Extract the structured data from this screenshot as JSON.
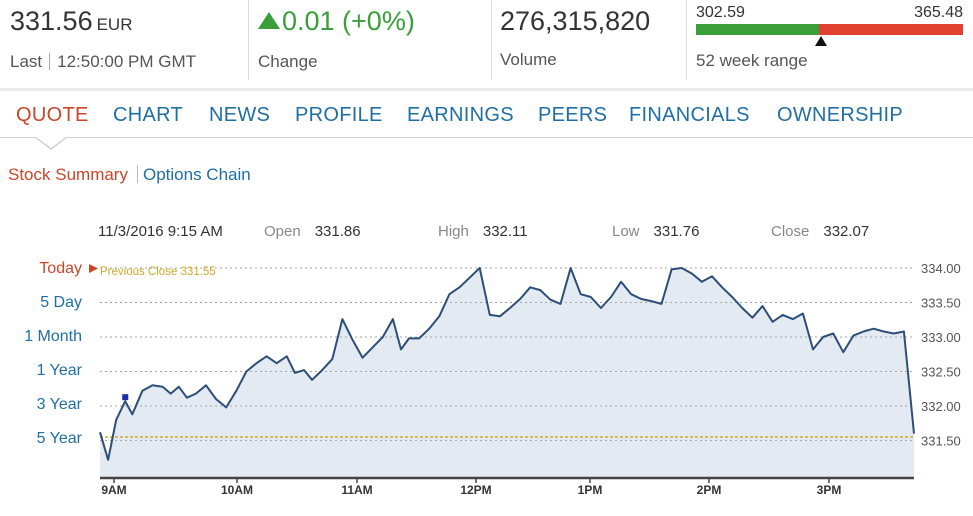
{
  "header": {
    "price": "331.56",
    "currency": "EUR",
    "last_label": "Last",
    "last_time": "12:50:00 PM GMT",
    "change": "0.01 (+0%)",
    "change_label": "Change",
    "volume": "276,315,820",
    "volume_label": "Volume",
    "range_low": "302.59",
    "range_high": "365.48",
    "range_label": "52 week range",
    "colors": {
      "up": "#3a9e3a",
      "down": "#e04030"
    }
  },
  "tabs": [
    {
      "label": "QUOTE",
      "active": true
    },
    {
      "label": "CHART"
    },
    {
      "label": "NEWS"
    },
    {
      "label": "PROFILE"
    },
    {
      "label": "EARNINGS"
    },
    {
      "label": "PEERS"
    },
    {
      "label": "FINANCIALS"
    },
    {
      "label": "OWNERSHIP"
    }
  ],
  "subtabs": [
    {
      "label": "Stock Summary",
      "active": true
    },
    {
      "label": "Options Chain"
    }
  ],
  "ohlc": {
    "datetime": "11/3/2016 9:15 AM",
    "open_label": "Open",
    "open": "331.86",
    "high_label": "High",
    "high": "332.11",
    "low_label": "Low",
    "low": "331.76",
    "close_label": "Close",
    "close": "332.07"
  },
  "periods": [
    {
      "label": "Today",
      "active": true
    },
    {
      "label": "5 Day"
    },
    {
      "label": "1 Month"
    },
    {
      "label": "1 Year"
    },
    {
      "label": "3 Year"
    },
    {
      "label": "5 Year"
    }
  ],
  "chart_data": {
    "type": "area",
    "previous_close_label": "Previous Close 331.55",
    "previous_close": 331.55,
    "ylim": [
      331.0,
      334.0
    ],
    "y_ticks": [
      "334.00",
      "333.50",
      "333.00",
      "332.50",
      "332.00",
      "331.50"
    ],
    "x_ticks": [
      "9AM",
      "10AM",
      "11AM",
      "12PM",
      "1PM",
      "2PM",
      "3PM"
    ],
    "x_domain_hours": [
      9.0,
      15.75
    ],
    "x_tick_hours": [
      9,
      10,
      11,
      12,
      13,
      14,
      15
    ],
    "selected_point": {
      "hour": 9.25,
      "value": 332.07
    },
    "colors": {
      "line": "#2d4e78",
      "fill": "#e3eaf1",
      "prev_close": "#d4a82a"
    },
    "series": [
      {
        "values": [
          [
            9.0,
            331.62
          ],
          [
            9.08,
            331.22
          ],
          [
            9.16,
            331.8
          ],
          [
            9.25,
            332.07
          ],
          [
            9.32,
            331.88
          ],
          [
            9.42,
            332.22
          ],
          [
            9.52,
            332.3
          ],
          [
            9.62,
            332.28
          ],
          [
            9.7,
            332.18
          ],
          [
            9.78,
            332.28
          ],
          [
            9.86,
            332.12
          ],
          [
            9.95,
            332.18
          ],
          [
            10.05,
            332.3
          ],
          [
            10.15,
            332.1
          ],
          [
            10.25,
            331.98
          ],
          [
            10.35,
            332.22
          ],
          [
            10.45,
            332.5
          ],
          [
            10.55,
            332.62
          ],
          [
            10.65,
            332.72
          ],
          [
            10.75,
            332.62
          ],
          [
            10.85,
            332.72
          ],
          [
            10.93,
            332.48
          ],
          [
            11.02,
            332.52
          ],
          [
            11.1,
            332.38
          ],
          [
            11.2,
            332.52
          ],
          [
            11.3,
            332.68
          ],
          [
            11.4,
            333.26
          ],
          [
            11.5,
            332.96
          ],
          [
            11.6,
            332.7
          ],
          [
            11.7,
            332.85
          ],
          [
            11.8,
            333.0
          ],
          [
            11.9,
            333.26
          ],
          [
            11.98,
            332.82
          ],
          [
            12.06,
            332.98
          ],
          [
            12.16,
            332.98
          ],
          [
            12.26,
            333.12
          ],
          [
            12.36,
            333.3
          ],
          [
            12.46,
            333.62
          ],
          [
            12.56,
            333.72
          ],
          [
            12.66,
            333.86
          ],
          [
            12.76,
            334.0
          ],
          [
            12.86,
            333.32
          ],
          [
            12.96,
            333.3
          ],
          [
            13.06,
            333.42
          ],
          [
            13.16,
            333.55
          ],
          [
            13.26,
            333.72
          ],
          [
            13.36,
            333.68
          ],
          [
            13.46,
            333.54
          ],
          [
            13.56,
            333.48
          ],
          [
            13.66,
            334.0
          ],
          [
            13.76,
            333.62
          ],
          [
            13.86,
            333.58
          ],
          [
            13.96,
            333.42
          ],
          [
            14.06,
            333.58
          ],
          [
            14.16,
            333.8
          ],
          [
            14.26,
            333.62
          ],
          [
            14.36,
            333.55
          ],
          [
            14.46,
            333.52
          ],
          [
            14.56,
            333.48
          ],
          [
            14.66,
            333.98
          ],
          [
            14.76,
            334.0
          ],
          [
            14.86,
            333.92
          ],
          [
            14.96,
            333.8
          ],
          [
            15.06,
            333.88
          ],
          [
            15.16,
            333.72
          ],
          [
            15.26,
            333.58
          ],
          [
            15.36,
            333.42
          ],
          [
            15.46,
            333.28
          ],
          [
            15.56,
            333.45
          ],
          [
            15.66,
            333.22
          ],
          [
            15.76,
            333.32
          ],
          [
            15.86,
            333.26
          ],
          [
            15.96,
            333.34
          ],
          [
            16.06,
            332.82
          ],
          [
            16.16,
            333.0
          ],
          [
            16.26,
            333.05
          ],
          [
            16.36,
            332.78
          ],
          [
            16.46,
            333.02
          ],
          [
            16.56,
            333.08
          ],
          [
            16.66,
            333.12
          ],
          [
            16.76,
            333.08
          ],
          [
            16.86,
            333.05
          ],
          [
            16.96,
            333.08
          ],
          [
            17.06,
            331.6
          ]
        ]
      }
    ]
  }
}
